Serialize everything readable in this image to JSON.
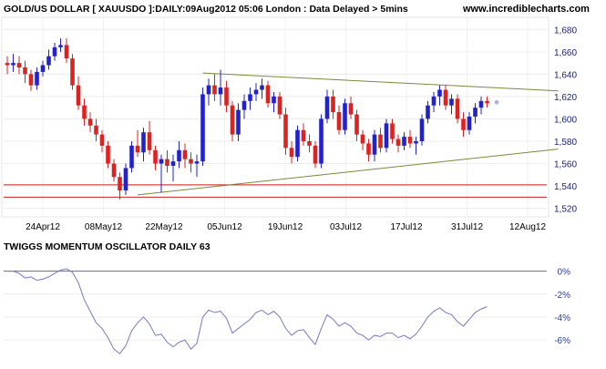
{
  "header": {
    "title": "GOLD/US DOLLAR [ XAUUSDO ]:DAILY:09Aug2012 05:06 London : Data Delayed > 5mins",
    "url": "www.incrediblecharts.com"
  },
  "oscillator": {
    "title": "TWIGGS MOMENTUM OSCILLATOR DAILY 63"
  },
  "chart_data": [
    {
      "type": "candlestick",
      "title": "GOLD/US DOLLAR [ XAUUSDO ]:DAILY:09Aug2012 05:06 London : Data Delayed > 5mins",
      "x_ticks": [
        "24Apr12",
        "08May12",
        "22May12",
        "05Jun12",
        "19Jun12",
        "03Jul12",
        "17Jul12",
        "31Jul12",
        "12Aug12"
      ],
      "y_ticks": [
        "1,520",
        "1,540",
        "1,560",
        "1,580",
        "1,600",
        "1,620",
        "1,640",
        "1,660",
        "1,680"
      ],
      "ylim": [
        1514,
        1690
      ],
      "colors": {
        "up": "#2222cc",
        "down": "#dd2222"
      },
      "series": [
        {
          "name": "candles",
          "values": [
            [
              1650,
              1656,
              1640,
              1648
            ],
            [
              1648,
              1658,
              1642,
              1650
            ],
            [
              1650,
              1656,
              1640,
              1646
            ],
            [
              1646,
              1652,
              1632,
              1640
            ],
            [
              1640,
              1644,
              1625,
              1630
            ],
            [
              1630,
              1646,
              1626,
              1642
            ],
            [
              1642,
              1652,
              1638,
              1648
            ],
            [
              1648,
              1662,
              1644,
              1656
            ],
            [
              1656,
              1668,
              1652,
              1664
            ],
            [
              1664,
              1672,
              1660,
              1666
            ],
            [
              1666,
              1672,
              1650,
              1654
            ],
            [
              1654,
              1658,
              1626,
              1630
            ],
            [
              1630,
              1638,
              1608,
              1612
            ],
            [
              1612,
              1618,
              1594,
              1600
            ],
            [
              1600,
              1606,
              1588,
              1594
            ],
            [
              1594,
              1600,
              1580,
              1586
            ],
            [
              1586,
              1590,
              1570,
              1576
            ],
            [
              1576,
              1580,
              1556,
              1560
            ],
            [
              1560,
              1564,
              1544,
              1548
            ],
            [
              1548,
              1552,
              1528,
              1536
            ],
            [
              1536,
              1560,
              1532,
              1556
            ],
            [
              1556,
              1580,
              1552,
              1576
            ],
            [
              1576,
              1590,
              1566,
              1570
            ],
            [
              1570,
              1592,
              1562,
              1588
            ],
            [
              1588,
              1598,
              1568,
              1572
            ],
            [
              1572,
              1576,
              1554,
              1560
            ],
            [
              1560,
              1568,
              1534,
              1564
            ],
            [
              1564,
              1572,
              1552,
              1558
            ],
            [
              1558,
              1568,
              1544,
              1562
            ],
            [
              1562,
              1580,
              1556,
              1572
            ],
            [
              1572,
              1578,
              1556,
              1564
            ],
            [
              1564,
              1570,
              1552,
              1560
            ],
            [
              1560,
              1568,
              1548,
              1562
            ],
            [
              1562,
              1628,
              1558,
              1622
            ],
            [
              1622,
              1636,
              1612,
              1630
            ],
            [
              1630,
              1640,
              1616,
              1622
            ],
            [
              1622,
              1644,
              1612,
              1628
            ],
            [
              1628,
              1634,
              1606,
              1612
            ],
            [
              1612,
              1616,
              1580,
              1586
            ],
            [
              1586,
              1614,
              1580,
              1608
            ],
            [
              1608,
              1622,
              1600,
              1616
            ],
            [
              1616,
              1628,
              1608,
              1622
            ],
            [
              1622,
              1632,
              1616,
              1626
            ],
            [
              1626,
              1636,
              1618,
              1630
            ],
            [
              1630,
              1634,
              1610,
              1614
            ],
            [
              1614,
              1624,
              1606,
              1620
            ],
            [
              1620,
              1624,
              1600,
              1604
            ],
            [
              1604,
              1610,
              1568,
              1574
            ],
            [
              1574,
              1580,
              1560,
              1566
            ],
            [
              1566,
              1594,
              1562,
              1590
            ],
            [
              1590,
              1596,
              1576,
              1580
            ],
            [
              1580,
              1586,
              1570,
              1576
            ],
            [
              1576,
              1580,
              1556,
              1560
            ],
            [
              1560,
              1604,
              1556,
              1600
            ],
            [
              1600,
              1626,
              1596,
              1620
            ],
            [
              1620,
              1626,
              1600,
              1606
            ],
            [
              1606,
              1612,
              1586,
              1590
            ],
            [
              1590,
              1618,
              1586,
              1614
            ],
            [
              1614,
              1620,
              1600,
              1604
            ],
            [
              1604,
              1608,
              1580,
              1586
            ],
            [
              1586,
              1590,
              1572,
              1578
            ],
            [
              1578,
              1582,
              1562,
              1568
            ],
            [
              1568,
              1590,
              1562,
              1586
            ],
            [
              1586,
              1592,
              1570,
              1574
            ],
            [
              1574,
              1600,
              1570,
              1596
            ],
            [
              1596,
              1600,
              1578,
              1582
            ],
            [
              1582,
              1586,
              1570,
              1576
            ],
            [
              1576,
              1588,
              1572,
              1584
            ],
            [
              1584,
              1590,
              1574,
              1578
            ],
            [
              1578,
              1584,
              1568,
              1580
            ],
            [
              1580,
              1604,
              1576,
              1600
            ],
            [
              1600,
              1616,
              1596,
              1612
            ],
            [
              1612,
              1624,
              1606,
              1620
            ],
            [
              1620,
              1630,
              1612,
              1626
            ],
            [
              1626,
              1630,
              1608,
              1612
            ],
            [
              1612,
              1622,
              1604,
              1618
            ],
            [
              1618,
              1622,
              1596,
              1600
            ],
            [
              1600,
              1606,
              1584,
              1590
            ],
            [
              1590,
              1606,
              1586,
              1602
            ],
            [
              1602,
              1614,
              1596,
              1610
            ],
            [
              1610,
              1620,
              1604,
              1616
            ],
            [
              1616,
              1620,
              1610,
              1614
            ]
          ]
        }
      ],
      "support_lines": [
        1541,
        1530
      ],
      "trendlines": [
        {
          "from": [
            33,
            1641
          ],
          "to": [
            93,
            1625
          ]
        },
        {
          "from": [
            22,
            1532
          ],
          "to": [
            93,
            1573
          ]
        }
      ]
    },
    {
      "type": "line",
      "title": "TWIGGS MOMENTUM OSCILLATOR DAILY 63",
      "y_ticks": [
        "0%",
        "-2%",
        "-4%",
        "-6%"
      ],
      "ylim": [
        -7.5,
        1
      ],
      "line_color": "#7777cc",
      "values": [
        0,
        0,
        -0.2,
        -0.6,
        -0.5,
        -0.8,
        -0.7,
        -0.5,
        -0.2,
        0.1,
        0.2,
        -0.1,
        -1,
        -2.5,
        -3.5,
        -4.5,
        -5,
        -5.8,
        -6.8,
        -7.2,
        -6.5,
        -5.2,
        -4.5,
        -4,
        -4.6,
        -5.6,
        -5.5,
        -6.2,
        -6.6,
        -6.2,
        -6,
        -6.8,
        -6.3,
        -4,
        -3.4,
        -3.6,
        -3.5,
        -4.1,
        -5.4,
        -5,
        -4.6,
        -4.2,
        -3.6,
        -3.4,
        -3.8,
        -3.5,
        -4,
        -5,
        -5.6,
        -5.2,
        -5.1,
        -5.8,
        -6.4,
        -5,
        -3.8,
        -4.2,
        -4.8,
        -4.5,
        -4.8,
        -5.4,
        -5.6,
        -6,
        -5.6,
        -5.7,
        -5.4,
        -5.4,
        -5.8,
        -5.6,
        -5.9,
        -5.5,
        -4.8,
        -4,
        -3.5,
        -3.2,
        -3.6,
        -3.8,
        -4.4,
        -4.8,
        -4.2,
        -3.6,
        -3.3,
        -3.1
      ]
    }
  ]
}
